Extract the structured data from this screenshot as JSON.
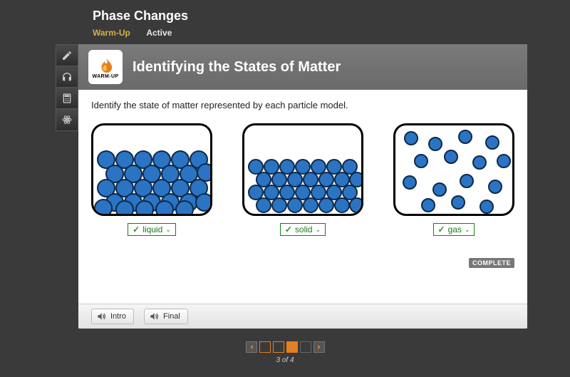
{
  "header": {
    "title": "Phase Changes",
    "tabs": {
      "warmup": "Warm-Up",
      "active": "Active"
    }
  },
  "banner": {
    "badge_label": "WARM-UP",
    "title": "Identifying the States of Matter"
  },
  "instruction": "Identify the state of matter represented by each particle model.",
  "particle_color": "#2b74c3",
  "particle_stroke": "#0d2a4a",
  "models": [
    {
      "id": "liquid",
      "answer": "liquid",
      "particles": [
        [
          18,
          48
        ],
        [
          44,
          48
        ],
        [
          70,
          48
        ],
        [
          96,
          48
        ],
        [
          122,
          48
        ],
        [
          148,
          48
        ],
        [
          30,
          68
        ],
        [
          56,
          68
        ],
        [
          82,
          68
        ],
        [
          108,
          68
        ],
        [
          134,
          68
        ],
        [
          158,
          66
        ],
        [
          18,
          88
        ],
        [
          44,
          88
        ],
        [
          70,
          88
        ],
        [
          96,
          88
        ],
        [
          122,
          88
        ],
        [
          148,
          88
        ],
        [
          30,
          108
        ],
        [
          56,
          108
        ],
        [
          82,
          108
        ],
        [
          108,
          108
        ],
        [
          134,
          108
        ],
        [
          156,
          108
        ],
        [
          14,
          116
        ],
        [
          44,
          118
        ],
        [
          72,
          118
        ],
        [
          100,
          118
        ],
        [
          128,
          118
        ]
      ],
      "r": 12
    },
    {
      "id": "solid",
      "answer": "solid",
      "particles": [
        [
          16,
          58
        ],
        [
          38,
          58
        ],
        [
          60,
          58
        ],
        [
          82,
          58
        ],
        [
          104,
          58
        ],
        [
          126,
          58
        ],
        [
          148,
          58
        ],
        [
          27,
          76
        ],
        [
          49,
          76
        ],
        [
          71,
          76
        ],
        [
          93,
          76
        ],
        [
          115,
          76
        ],
        [
          137,
          76
        ],
        [
          158,
          76
        ],
        [
          16,
          94
        ],
        [
          38,
          94
        ],
        [
          60,
          94
        ],
        [
          82,
          94
        ],
        [
          104,
          94
        ],
        [
          126,
          94
        ],
        [
          148,
          94
        ],
        [
          27,
          112
        ],
        [
          49,
          112
        ],
        [
          71,
          112
        ],
        [
          93,
          112
        ],
        [
          115,
          112
        ],
        [
          137,
          112
        ],
        [
          158,
          112
        ]
      ],
      "r": 10
    },
    {
      "id": "gas",
      "answer": "gas",
      "particles": [
        [
          22,
          18
        ],
        [
          56,
          26
        ],
        [
          98,
          16
        ],
        [
          136,
          24
        ],
        [
          36,
          50
        ],
        [
          78,
          44
        ],
        [
          118,
          52
        ],
        [
          152,
          50
        ],
        [
          20,
          80
        ],
        [
          62,
          90
        ],
        [
          100,
          78
        ],
        [
          140,
          86
        ],
        [
          46,
          112
        ],
        [
          88,
          108
        ],
        [
          128,
          114
        ]
      ],
      "r": 9
    }
  ],
  "complete_label": "COMPLETE",
  "audio": {
    "intro": "Intro",
    "final": "Final"
  },
  "pager": {
    "current": 3,
    "total": 4,
    "text": "3 of 4"
  }
}
